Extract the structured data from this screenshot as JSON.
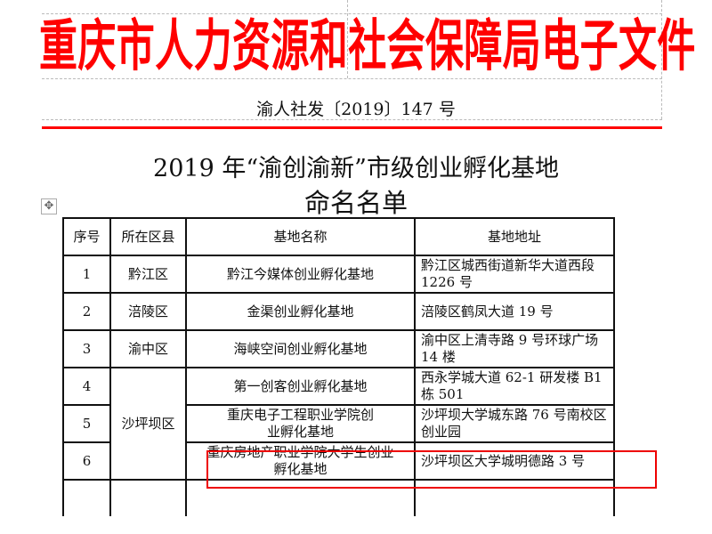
{
  "header": {
    "agency_title": "重庆市人力资源和社会保障局电子文件",
    "doc_number": "渝人社发〔2019〕147 号",
    "title_line1": "2019 年“渝创渝新”市级创业孵化基地",
    "title_line2": "命名名单"
  },
  "table": {
    "columns": [
      "序号",
      "所在区县",
      "基地名称",
      "基地地址"
    ],
    "rows": [
      {
        "no": "1",
        "district": "黔江区",
        "name": "黔江今媒体创业孵化基地",
        "address": "黔江区城西街道新华大道西段 1226 号"
      },
      {
        "no": "2",
        "district": "涪陵区",
        "name": "金渠创业孵化基地",
        "address": "涪陵区鹤凤大道 19 号"
      },
      {
        "no": "3",
        "district": "渝中区",
        "name": "海峡空间创业孵化基地",
        "address": "渝中区上清寺路 9 号环球广场 14 楼"
      },
      {
        "no": "4",
        "district": "沙坪坝区",
        "name": "第一创客创业孵化基地",
        "address": "西永学城大道 62-1 研发楼 B1 栋 501"
      },
      {
        "no": "5",
        "district": "",
        "name": "重庆电子工程职业学院创业孵化基地",
        "address": "沙坪坝大学城东路 76 号南校区创业园"
      },
      {
        "no": "6",
        "district": "",
        "name": "重庆房地产职业学院大学生创业孵化基地",
        "address": "沙坪坝区大学城明德路 3 号"
      }
    ]
  },
  "colors": {
    "red": "#ff0000",
    "highlight": "#e00000"
  }
}
